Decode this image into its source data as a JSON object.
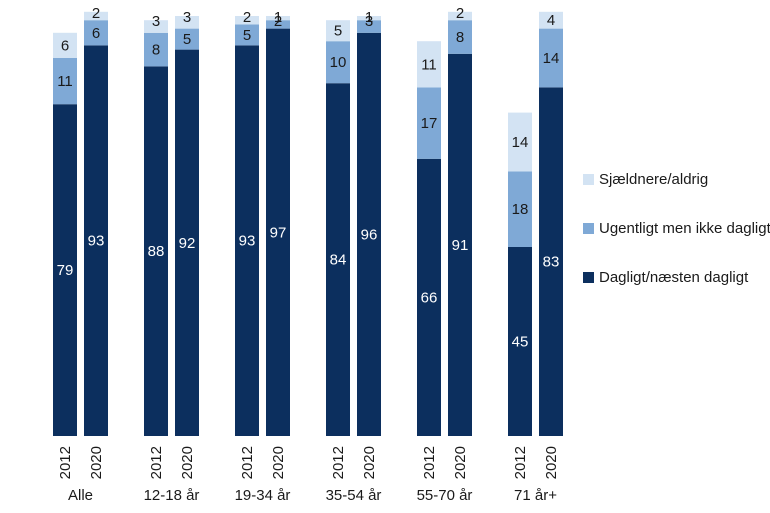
{
  "chart_data": {
    "type": "bar",
    "stacked": true,
    "title": "",
    "xlabel": "",
    "ylabel": "",
    "ylim": [
      0,
      100
    ],
    "grid": false,
    "legend_position": "right",
    "groups": [
      {
        "label": "Alle",
        "years": [
          "2012",
          "2020"
        ]
      },
      {
        "label": "12-18 år",
        "years": [
          "2012",
          "2020"
        ]
      },
      {
        "label": "19-34 år",
        "years": [
          "2012",
          "2020"
        ]
      },
      {
        "label": "35-54 år",
        "years": [
          "2012",
          "2020"
        ]
      },
      {
        "label": "55-70 år",
        "years": [
          "2012",
          "2020"
        ]
      },
      {
        "label": "71 år+",
        "years": [
          "2012",
          "2020"
        ]
      }
    ],
    "series": [
      {
        "name": "Dagligt/næsten dagligt",
        "color": "#0c2f5e",
        "label_color": "#ffffff",
        "values": [
          79,
          93,
          88,
          92,
          93,
          97,
          84,
          96,
          66,
          91,
          45,
          83
        ]
      },
      {
        "name": "Ugentligt men ikke dagligt",
        "color": "#7fa9d6",
        "label_color": "#1a1a1a",
        "values": [
          11,
          6,
          8,
          5,
          5,
          2,
          10,
          3,
          17,
          8,
          18,
          14
        ]
      },
      {
        "name": "Sjældnere/aldrig",
        "color": "#d3e3f3",
        "label_color": "#1a1a1a",
        "values": [
          6,
          2,
          3,
          3,
          2,
          1,
          5,
          1,
          11,
          2,
          14,
          4
        ]
      }
    ],
    "legend_order": [
      "Sjældnere/aldrig",
      "Ugentligt men ikke dagligt",
      "Dagligt/næsten dagligt"
    ]
  }
}
